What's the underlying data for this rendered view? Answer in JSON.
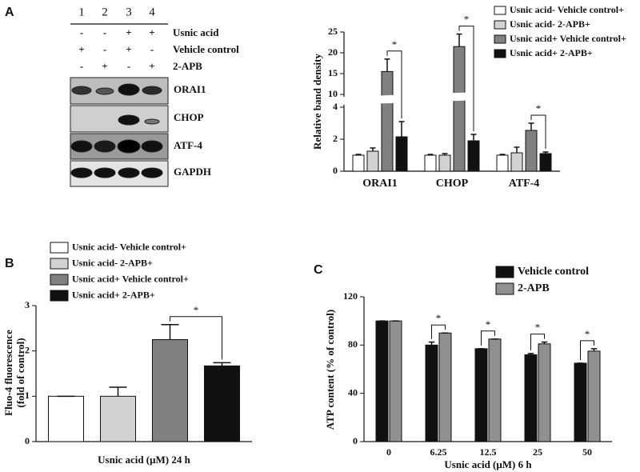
{
  "panel_labels": [
    "A",
    "B",
    "C"
  ],
  "blot": {
    "lanes": [
      "1",
      "2",
      "3",
      "4"
    ],
    "conditions": [
      {
        "name": "Usnic acid",
        "signs": [
          "-",
          "-",
          "+",
          "+"
        ]
      },
      {
        "name": "Vehicle control",
        "signs": [
          "+",
          "-",
          "+",
          "-"
        ]
      },
      {
        "name": "2-APB",
        "signs": [
          "-",
          "+",
          "-",
          "+"
        ]
      }
    ],
    "bands": [
      "ORAI1",
      "CHOP",
      "ATF-4",
      "GAPDH"
    ]
  },
  "chart_data": [
    {
      "type": "bar",
      "y_label": "Relative band density",
      "categories": [
        "ORAI1",
        "CHOP",
        "ATF-4"
      ],
      "series": [
        {
          "name": "Usnic acid-  Vehicle control+",
          "color": "#ffffff",
          "values": [
            1.0,
            1.0,
            1.0
          ],
          "errors": [
            0.05,
            0.05,
            0.05
          ]
        },
        {
          "name": "Usnic acid-  2-APB+",
          "color": "#d2d2d2",
          "values": [
            1.25,
            1.0,
            1.15
          ],
          "errors": [
            0.2,
            0.1,
            0.35
          ]
        },
        {
          "name": "Usnic acid+  Vehicle control+",
          "color": "#808080",
          "values": [
            15.5,
            21.5,
            2.55
          ],
          "errors": [
            3.0,
            3.0,
            0.45
          ]
        },
        {
          "name": "Usnic acid+  2-APB+",
          "color": "#111111",
          "values": [
            2.15,
            1.9,
            1.1
          ],
          "errors": [
            0.95,
            0.4,
            0.1
          ]
        }
      ],
      "ylim": [
        0,
        25
      ],
      "y_break": [
        4,
        10
      ],
      "yticks": [
        0,
        2,
        4,
        10,
        15,
        20,
        25
      ],
      "significance": [
        {
          "category": 0,
          "series": [
            2,
            3
          ],
          "label": "*"
        },
        {
          "category": 1,
          "series": [
            2,
            3
          ],
          "label": "*"
        },
        {
          "category": 2,
          "series": [
            2,
            3
          ],
          "label": "*"
        }
      ]
    },
    {
      "type": "bar",
      "y_label": [
        "Fluo-4 fluorescence",
        "(fold of control)"
      ],
      "x_label": "Usnic acid (μM) 24 h",
      "categories": [
        null
      ],
      "series": [
        {
          "name": "Usnic acid-  Vehicle control+",
          "color": "#ffffff",
          "values": [
            1.0
          ],
          "errors": [
            0.0
          ]
        },
        {
          "name": "Usnic acid-  2-APB+",
          "color": "#d2d2d2",
          "values": [
            1.0
          ],
          "errors": [
            0.2
          ]
        },
        {
          "name": "Usnic acid+  Vehicle control+",
          "color": "#808080",
          "values": [
            2.25
          ],
          "errors": [
            0.33
          ]
        },
        {
          "name": "Usnic acid+  2-APB+",
          "color": "#111111",
          "values": [
            1.67
          ],
          "errors": [
            0.07
          ]
        }
      ],
      "ylim": [
        0,
        3
      ],
      "yticks": [
        0,
        1,
        2,
        3
      ],
      "significance": [
        {
          "category": 0,
          "series": [
            2,
            3
          ],
          "label": "*"
        }
      ]
    },
    {
      "type": "bar",
      "y_label": "ATP content (% of control)",
      "x_label": "Usnic acid (μM) 6 h",
      "categories": [
        "0",
        "6.25",
        "12.5",
        "25",
        "50"
      ],
      "series": [
        {
          "name": "Vehicle control",
          "color": "#111111",
          "values": [
            100,
            80,
            77,
            72,
            65
          ],
          "errors": [
            0,
            2.5,
            0,
            1,
            0
          ]
        },
        {
          "name": "2-APB",
          "color": "#909090",
          "values": [
            100,
            90,
            85,
            81,
            75
          ],
          "errors": [
            0,
            0,
            0,
            1.5,
            2
          ]
        }
      ],
      "ylim": [
        0,
        120
      ],
      "yticks": [
        0,
        40,
        80,
        120
      ],
      "significance": [
        {
          "category": 1,
          "series": [
            0,
            1
          ],
          "label": "*"
        },
        {
          "category": 2,
          "series": [
            0,
            1
          ],
          "label": "*"
        },
        {
          "category": 3,
          "series": [
            0,
            1
          ],
          "label": "*"
        },
        {
          "category": 4,
          "series": [
            0,
            1
          ],
          "label": "*"
        }
      ]
    }
  ]
}
